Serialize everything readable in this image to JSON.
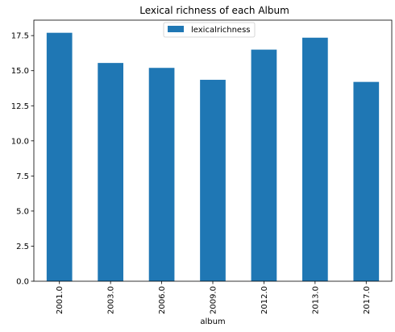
{
  "chart_data": {
    "type": "bar",
    "title": "Lexical richness of each Album",
    "xlabel": "album",
    "ylabel": "",
    "categories": [
      "2001.0",
      "2003.0",
      "2006.0",
      "2009.0",
      "2012.0",
      "2013.0",
      "2017.0"
    ],
    "series": [
      {
        "name": "lexicalrichness",
        "color": "#1f77b4",
        "values": [
          17.7,
          15.55,
          15.2,
          14.35,
          16.5,
          17.35,
          14.2
        ]
      }
    ],
    "ylim": [
      0,
      18.6
    ],
    "yticks": [
      "0.0",
      "2.5",
      "5.0",
      "7.5",
      "10.0",
      "12.5",
      "15.0",
      "17.5"
    ],
    "legend": "top-center",
    "grid": false
  }
}
